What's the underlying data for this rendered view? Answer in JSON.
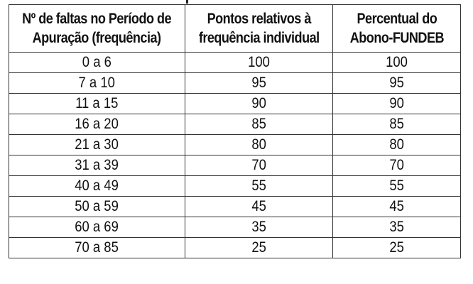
{
  "table": {
    "headers": [
      "Nº de faltas no Período de\nApuração (frequência)",
      "Pontos relativos à\nfrequência individual",
      "Percentual do\nAbono-FUNDEB"
    ],
    "rows": [
      [
        "0 a 6",
        "100",
        "100"
      ],
      [
        "7 a 10",
        "95",
        "95"
      ],
      [
        "11 a 15",
        "90",
        "90"
      ],
      [
        "16 a 20",
        "85",
        "85"
      ],
      [
        "21 a 30",
        "80",
        "80"
      ],
      [
        "31 a 39",
        "70",
        "70"
      ],
      [
        "40 a 49",
        "55",
        "55"
      ],
      [
        "50 a 59",
        "45",
        "45"
      ],
      [
        "60 a 69",
        "35",
        "35"
      ],
      [
        "70 a 85",
        "25",
        "25"
      ]
    ]
  }
}
